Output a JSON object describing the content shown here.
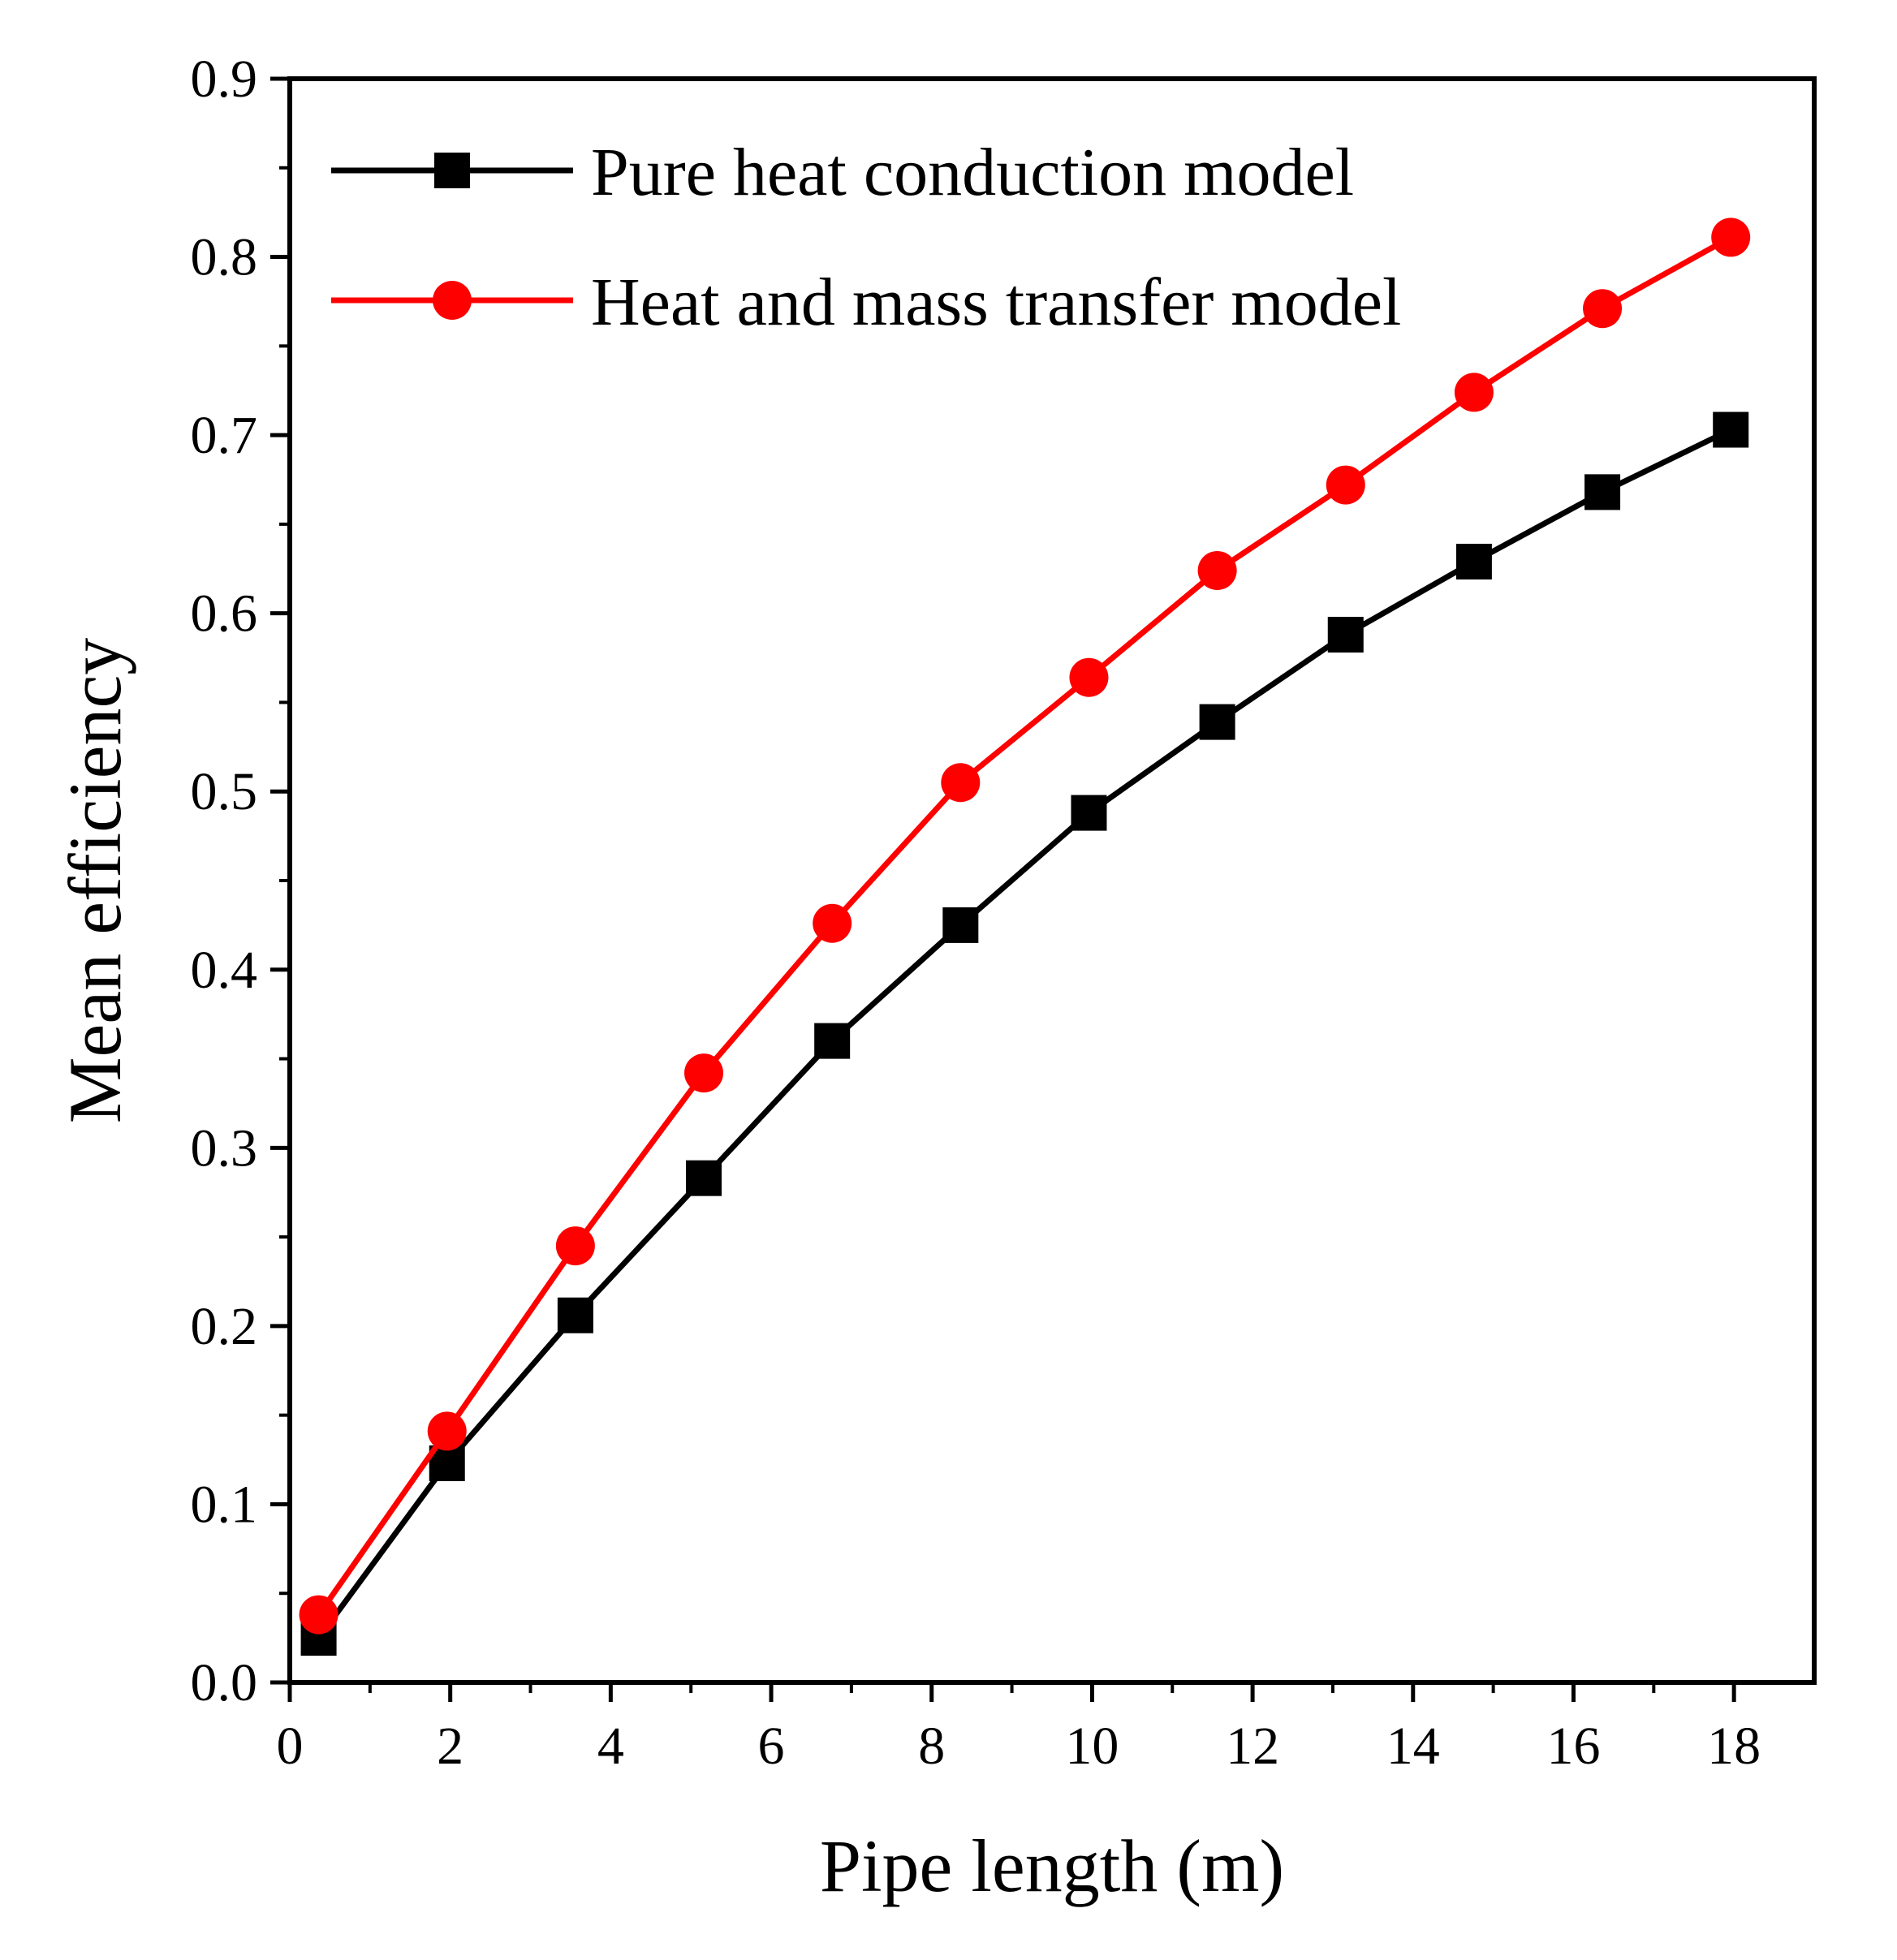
{
  "chart_data": {
    "type": "line",
    "xlabel": "Pipe length (m)",
    "ylabel": "Mean efficiency",
    "xlim": [
      0,
      19
    ],
    "ylim": [
      0.0,
      0.9
    ],
    "xticks": [
      0,
      2,
      4,
      6,
      8,
      10,
      12,
      14,
      16,
      18
    ],
    "yticks": [
      0.0,
      0.1,
      0.2,
      0.3,
      0.4,
      0.5,
      0.6,
      0.7,
      0.8,
      0.9
    ],
    "xtick_labels": [
      "0",
      "2",
      "4",
      "6",
      "8",
      "10",
      "12",
      "14",
      "16",
      "18"
    ],
    "ytick_labels": [
      "0.0",
      "0.1",
      "0.2",
      "0.3",
      "0.4",
      "0.5",
      "0.6",
      "0.7",
      "0.8",
      "0.9"
    ],
    "legend_position": "top-left",
    "series": [
      {
        "name": "Pure heat conduction model",
        "color": "#000000",
        "marker": "square",
        "x": [
          0.36,
          1.96,
          3.56,
          5.16,
          6.76,
          8.36,
          9.96,
          11.56,
          13.16,
          14.76,
          16.36,
          17.96
        ],
        "y": [
          0.025,
          0.123,
          0.206,
          0.283,
          0.36,
          0.425,
          0.488,
          0.539,
          0.588,
          0.629,
          0.668,
          0.703
        ]
      },
      {
        "name": "Heat and mass transfer model",
        "color": "#ff0000",
        "marker": "circle",
        "x": [
          0.36,
          1.96,
          3.56,
          5.16,
          6.76,
          8.36,
          9.96,
          11.56,
          13.16,
          14.76,
          16.36,
          17.96
        ],
        "y": [
          0.038,
          0.141,
          0.245,
          0.342,
          0.426,
          0.505,
          0.564,
          0.624,
          0.672,
          0.724,
          0.771,
          0.811
        ]
      }
    ]
  }
}
